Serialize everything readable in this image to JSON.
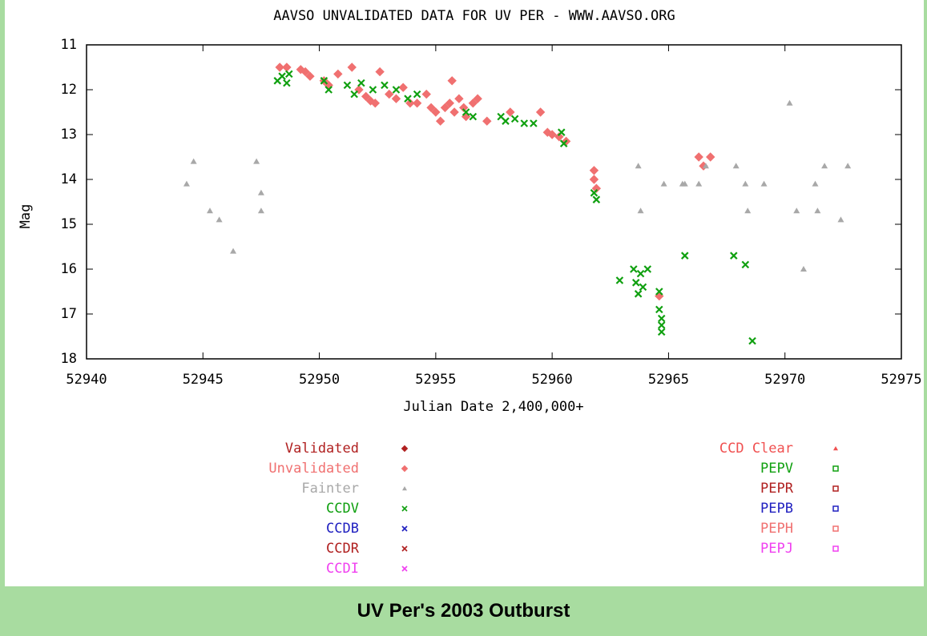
{
  "caption": "UV Per's 2003 Outburst",
  "chart_data": {
    "type": "scatter",
    "title": "AAVSO UNVALIDATED DATA FOR UV PER - WWW.AAVSO.ORG",
    "x_label": "Julian Date 2,400,000+",
    "y_label": "Mag",
    "xlim": [
      52940,
      52975
    ],
    "xticks": [
      52940,
      52945,
      52950,
      52955,
      52960,
      52965,
      52970,
      52975
    ],
    "ylim": [
      18,
      11
    ],
    "yticks": [
      11,
      12,
      13,
      14,
      15,
      16,
      17,
      18
    ],
    "grid": false,
    "series": [
      {
        "name": "Validated",
        "color": "#b02020",
        "marker": "diamond",
        "x": [],
        "values": []
      },
      {
        "name": "Unvalidated",
        "color": "#f07070",
        "marker": "diamond",
        "x": [
          52948.3,
          52948.6,
          52949.2,
          52949.4,
          52949.6,
          52950.2,
          52950.4,
          52950.8,
          52951.4,
          52951.7,
          52952.0,
          52952.2,
          52952.4,
          52952.6,
          52953.0,
          52953.3,
          52953.6,
          52953.9,
          52954.2,
          52954.6,
          52954.8,
          52955.0,
          52955.2,
          52955.4,
          52955.6,
          52955.7,
          52955.8,
          52956.0,
          52956.2,
          52956.3,
          52956.6,
          52956.8,
          52957.2,
          52958.2,
          52959.5,
          52959.8,
          52960.0,
          52960.3,
          52960.6,
          52961.8,
          52961.8,
          52961.9,
          52964.6,
          52966.3,
          52966.5,
          52966.8
        ],
        "values": [
          11.5,
          11.5,
          11.55,
          11.6,
          11.7,
          11.8,
          11.9,
          11.65,
          11.5,
          12.0,
          12.15,
          12.25,
          12.3,
          11.6,
          12.1,
          12.2,
          11.95,
          12.3,
          12.3,
          12.1,
          12.4,
          12.5,
          12.7,
          12.4,
          12.3,
          11.8,
          12.5,
          12.2,
          12.4,
          12.6,
          12.3,
          12.2,
          12.7,
          12.5,
          12.5,
          12.95,
          13.0,
          13.05,
          13.15,
          13.8,
          14.0,
          14.2,
          16.6,
          13.5,
          13.7,
          13.5
        ]
      },
      {
        "name": "Fainter",
        "color": "#a8a8a8",
        "marker": "triangle",
        "x": [
          52944.3,
          52944.6,
          52945.3,
          52945.7,
          52946.3,
          52947.3,
          52947.5,
          52947.5,
          52963.7,
          52963.8,
          52964.8,
          52965.6,
          52965.7,
          52966.3,
          52966.6,
          52967.9,
          52968.3,
          52968.4,
          52969.1,
          52970.2,
          52970.5,
          52970.8,
          52971.3,
          52971.4,
          52971.7,
          52972.4,
          52972.7
        ],
        "values": [
          14.1,
          13.6,
          14.7,
          14.9,
          15.6,
          13.6,
          14.3,
          14.7,
          13.7,
          14.7,
          14.1,
          14.1,
          14.1,
          14.1,
          13.7,
          13.7,
          14.1,
          14.7,
          14.1,
          12.3,
          14.7,
          16.0,
          14.1,
          14.7,
          13.7,
          14.9,
          13.7
        ]
      },
      {
        "name": "CCDV",
        "color": "#10a010",
        "marker": "x",
        "x": [
          52948.2,
          52948.4,
          52948.6,
          52948.7,
          52950.2,
          52950.4,
          52951.2,
          52951.5,
          52951.8,
          52952.3,
          52952.8,
          52953.3,
          52953.8,
          52954.2,
          52956.3,
          52956.6,
          52957.8,
          52958.0,
          52958.4,
          52958.8,
          52959.2,
          52960.4,
          52960.5,
          52961.8,
          52961.9,
          52962.9,
          52963.5,
          52963.6,
          52963.7,
          52963.8,
          52963.9,
          52964.1,
          52964.6,
          52964.6,
          52964.7,
          52964.7,
          52964.7,
          52965.7,
          52967.8,
          52968.3,
          52968.6
        ],
        "values": [
          11.8,
          11.7,
          11.85,
          11.65,
          11.8,
          12.0,
          11.9,
          12.1,
          11.85,
          12.0,
          11.9,
          12.0,
          12.2,
          12.1,
          12.5,
          12.6,
          12.6,
          12.7,
          12.65,
          12.75,
          12.75,
          12.95,
          13.2,
          14.3,
          14.45,
          16.25,
          16.0,
          16.3,
          16.55,
          16.1,
          16.4,
          16.0,
          16.5,
          16.9,
          17.1,
          17.25,
          17.4,
          15.7,
          15.7,
          15.9,
          17.6
        ]
      },
      {
        "name": "CCDB",
        "color": "#2020c0",
        "marker": "x",
        "x": [],
        "values": []
      },
      {
        "name": "CCDR",
        "color": "#b02020",
        "marker": "x",
        "x": [],
        "values": []
      },
      {
        "name": "CCDI",
        "color": "#f040f0",
        "marker": "x",
        "x": [],
        "values": []
      },
      {
        "name": "CCD Clear",
        "color": "#f05050",
        "marker": "triangle",
        "x": [],
        "values": []
      },
      {
        "name": "PEPV",
        "color": "#10a010",
        "marker": "square",
        "x": [],
        "values": []
      },
      {
        "name": "PEPR",
        "color": "#b02020",
        "marker": "square",
        "x": [],
        "values": []
      },
      {
        "name": "PEPB",
        "color": "#2020c0",
        "marker": "square",
        "x": [],
        "values": []
      },
      {
        "name": "PEPH",
        "color": "#f07070",
        "marker": "square",
        "x": [],
        "values": []
      },
      {
        "name": "PEPJ",
        "color": "#f040f0",
        "marker": "square",
        "x": [],
        "values": []
      }
    ]
  }
}
